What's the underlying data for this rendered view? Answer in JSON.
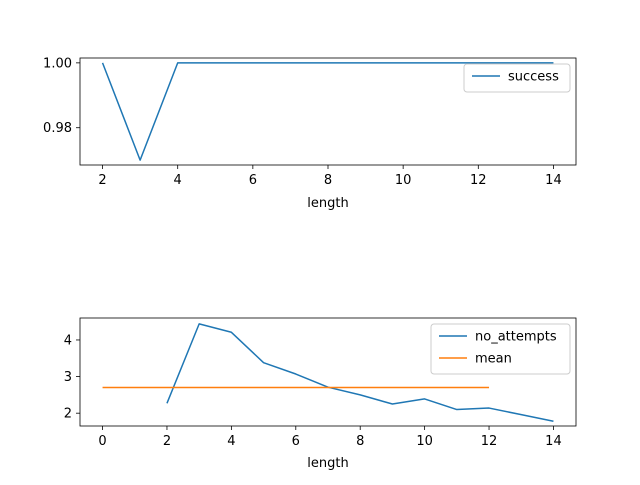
{
  "chart_data": [
    {
      "type": "line",
      "xlabel": "length",
      "ylabel": "",
      "xlim": [
        1.4,
        14.6
      ],
      "ylim": [
        0.9685,
        1.0015
      ],
      "xticks": [
        "2",
        "4",
        "6",
        "8",
        "10",
        "12",
        "14"
      ],
      "xtick_values": [
        2,
        4,
        6,
        8,
        10,
        12,
        14
      ],
      "yticks": [
        "0.98",
        "1.00"
      ],
      "ytick_values": [
        0.98,
        1.0
      ],
      "legend_position": "top-right",
      "series": [
        {
          "name": "success",
          "color": "#1f77b4",
          "x": [
            2,
            3,
            4,
            5,
            6,
            7,
            8,
            9,
            10,
            11,
            12,
            13,
            14
          ],
          "y": [
            1.0,
            0.97,
            1.0,
            1.0,
            1.0,
            1.0,
            1.0,
            1.0,
            1.0,
            1.0,
            1.0,
            1.0,
            1.0
          ]
        }
      ]
    },
    {
      "type": "line",
      "xlabel": "length",
      "ylabel": "",
      "xlim": [
        -0.7,
        14.7
      ],
      "ylim": [
        1.65,
        4.6
      ],
      "xticks": [
        "0",
        "2",
        "4",
        "6",
        "8",
        "10",
        "12",
        "14"
      ],
      "xtick_values": [
        0,
        2,
        4,
        6,
        8,
        10,
        12,
        14
      ],
      "yticks": [
        "2",
        "3",
        "4"
      ],
      "ytick_values": [
        2,
        3,
        4
      ],
      "legend_position": "top-right",
      "series": [
        {
          "name": "no_attempts",
          "color": "#1f77b4",
          "x": [
            2,
            3,
            4,
            5,
            6,
            7,
            8,
            9,
            10,
            11,
            12,
            13,
            14
          ],
          "y": [
            2.27,
            4.44,
            4.21,
            3.38,
            3.07,
            2.71,
            2.5,
            2.25,
            2.39,
            2.1,
            2.14,
            1.96,
            1.78
          ]
        },
        {
          "name": "mean",
          "color": "#ff7f0e",
          "x": [
            0,
            12
          ],
          "y": [
            2.7,
            2.7
          ]
        }
      ]
    }
  ]
}
